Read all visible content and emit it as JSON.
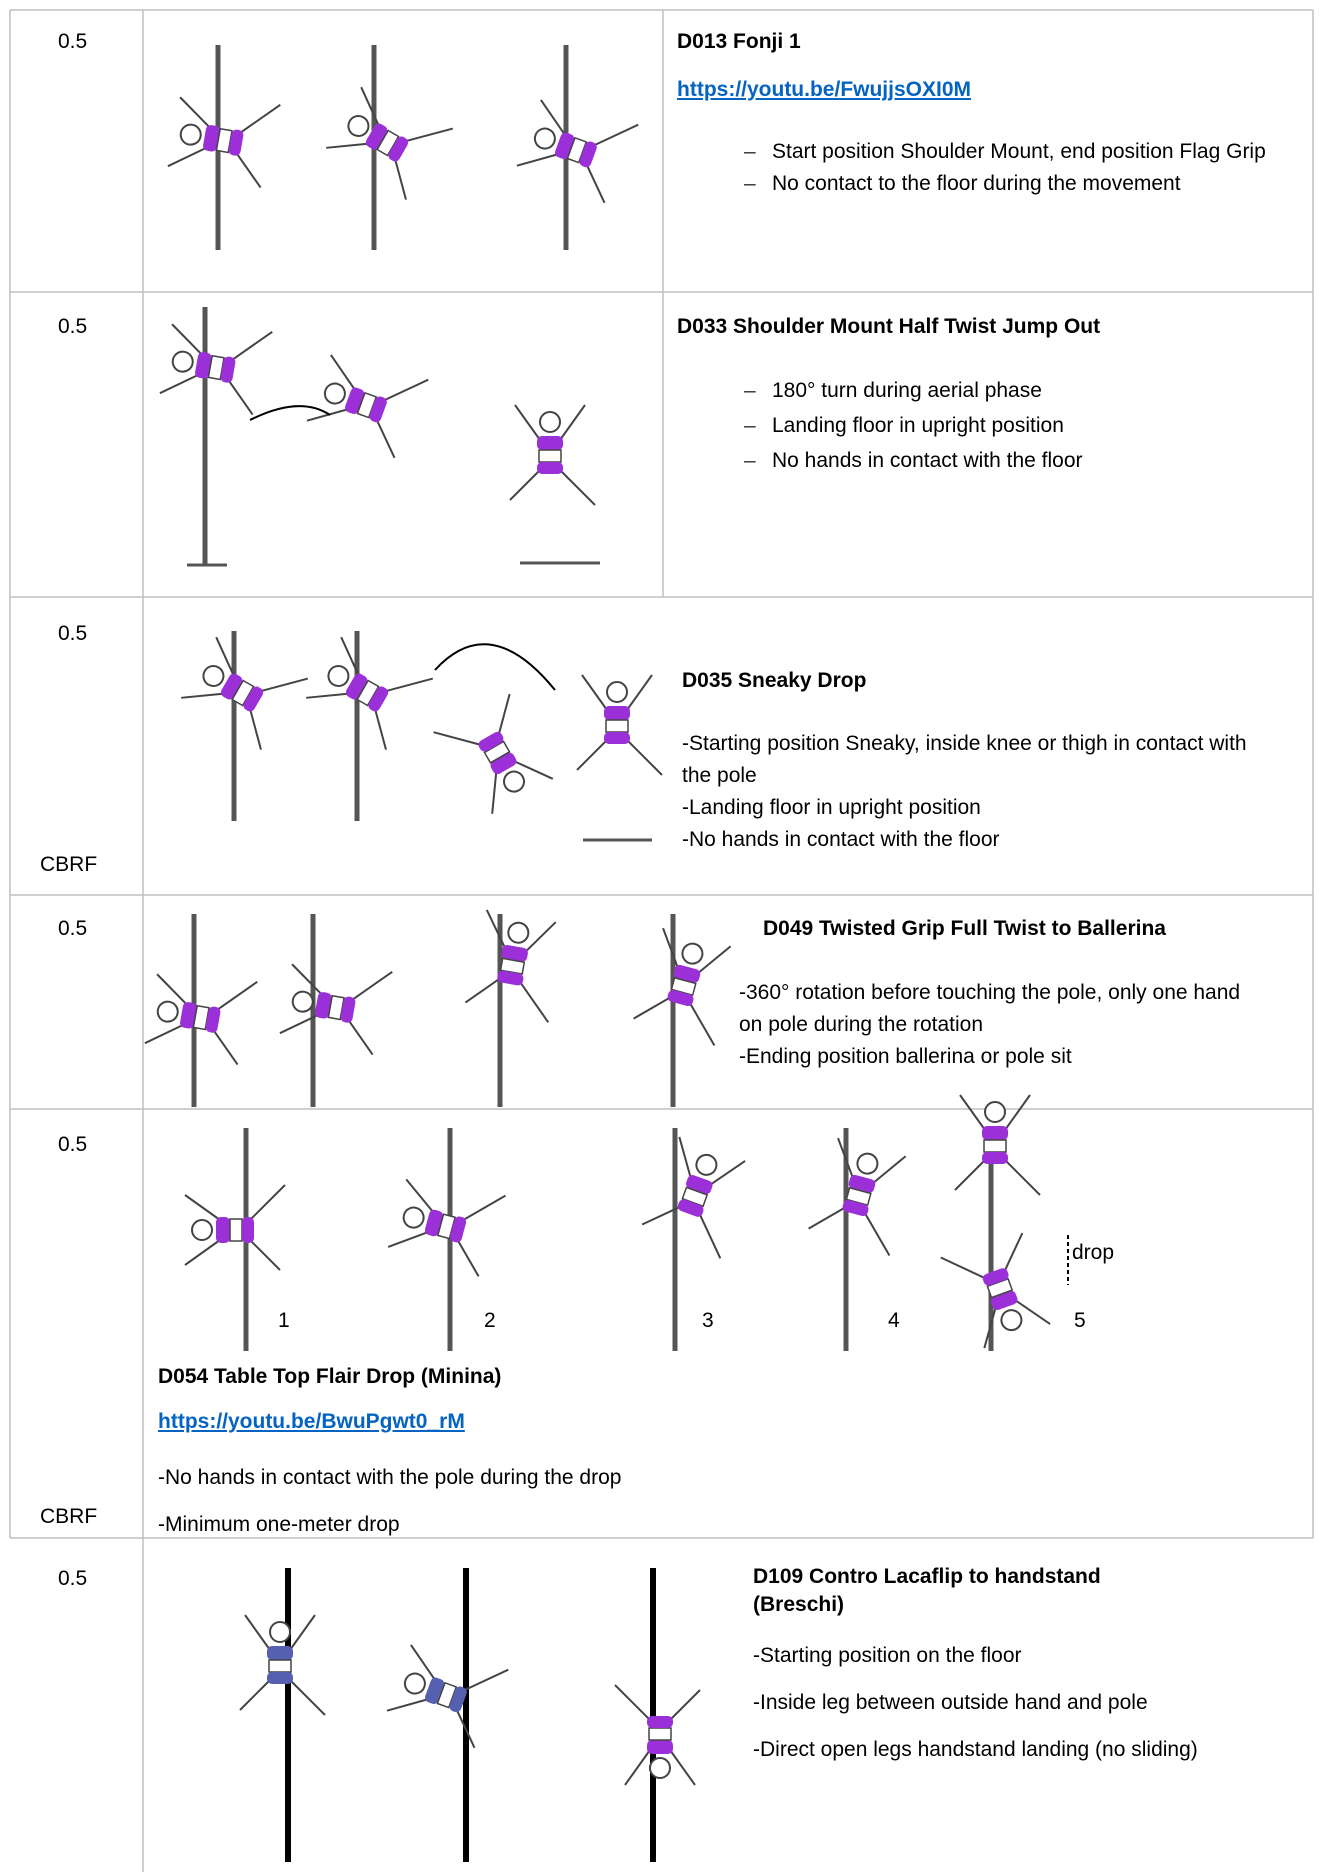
{
  "table": {
    "rows": [
      {
        "score": "0.5",
        "title": "D013 Fonji 1",
        "link": "https://youtu.be/FwujjsOXI0M",
        "bullets": [
          "Start position Shoulder Mount, end position Flag Grip",
          "No contact to the floor during the movement"
        ]
      },
      {
        "score": "0.5",
        "title": "D033 Shoulder Mount Half Twist Jump Out",
        "bullets": [
          "180° turn during aerial phase",
          "Landing floor in upright position",
          "No hands in contact with the floor"
        ]
      },
      {
        "score": "0.5",
        "tag": "CBRF",
        "title": "D035 Sneaky Drop",
        "lines": [
          "-Starting position Sneaky, inside knee or thigh in contact with the pole",
          "-Landing floor in upright position",
          "-No hands in contact with the floor"
        ]
      },
      {
        "score": "0.5",
        "title": "D049 Twisted Grip Full Twist to Ballerina",
        "lines": [
          "-360° rotation before touching the pole, only one hand on pole during the rotation",
          "-Ending position ballerina or pole sit"
        ]
      },
      {
        "score": "0.5",
        "tag": "CBRF",
        "figure_labels": [
          "1",
          "2",
          "3",
          "4",
          "5",
          "drop"
        ],
        "title": "D054 Table Top Flair Drop (Minina)",
        "link": "https://youtu.be/BwuPgwt0_rM",
        "lines": [
          "-No hands in contact with the pole during the drop",
          "-Minimum one-meter drop"
        ]
      },
      {
        "score": "0.5",
        "title": "D109 Contro Lacaflip to handstand (Breschi)",
        "lines": [
          "-Starting position on the floor",
          "-Inside leg between outside hand and pole",
          "-Direct open legs handstand landing  (no sliding)"
        ]
      }
    ]
  }
}
